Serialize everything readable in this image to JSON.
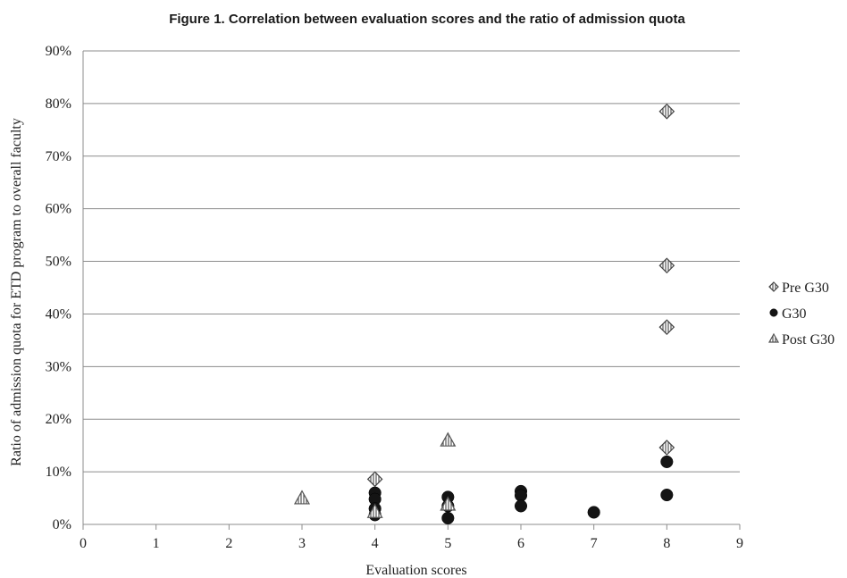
{
  "chart_data": {
    "type": "scatter",
    "title": "Figure 1.   Correlation between evaluation scores and the ratio of admission quota",
    "xlabel": "Evaluation scores",
    "ylabel": "Ratio of admission quota for ETD program to overall faculty",
    "xlim": [
      0,
      9
    ],
    "ylim": [
      0,
      90
    ],
    "x_ticks": [
      "0",
      "1",
      "2",
      "3",
      "4",
      "5",
      "6",
      "7",
      "8",
      "9"
    ],
    "y_ticks": [
      "0%",
      "10%",
      "20%",
      "30%",
      "40%",
      "50%",
      "60%",
      "70%",
      "80%",
      "90%"
    ],
    "grid": true,
    "legend_position": "right",
    "series": [
      {
        "name": "Pre G30",
        "marker": "diamond",
        "points": [
          {
            "x": 4,
            "y": 8.6
          },
          {
            "x": 8,
            "y": 78.5
          },
          {
            "x": 8,
            "y": 49.2
          },
          {
            "x": 8,
            "y": 37.5
          },
          {
            "x": 8,
            "y": 14.6
          }
        ]
      },
      {
        "name": "G30",
        "marker": "circle",
        "points": [
          {
            "x": 4,
            "y": 6.0
          },
          {
            "x": 4,
            "y": 4.8
          },
          {
            "x": 4,
            "y": 3.0
          },
          {
            "x": 4,
            "y": 1.8
          },
          {
            "x": 5,
            "y": 5.2
          },
          {
            "x": 5,
            "y": 3.5
          },
          {
            "x": 5,
            "y": 1.2
          },
          {
            "x": 6,
            "y": 6.3
          },
          {
            "x": 6,
            "y": 5.5
          },
          {
            "x": 6,
            "y": 3.5
          },
          {
            "x": 7,
            "y": 2.3
          },
          {
            "x": 8,
            "y": 11.9
          },
          {
            "x": 8,
            "y": 5.6
          }
        ]
      },
      {
        "name": "Post G30",
        "marker": "triangle",
        "points": [
          {
            "x": 3,
            "y": 5.0
          },
          {
            "x": 4,
            "y": 2.4
          },
          {
            "x": 5,
            "y": 16.0
          },
          {
            "x": 5,
            "y": 3.8
          }
        ]
      }
    ]
  }
}
